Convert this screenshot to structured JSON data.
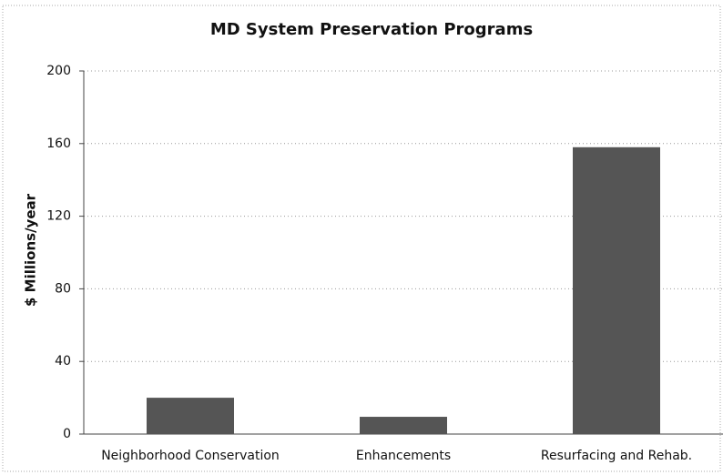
{
  "chart_data": {
    "type": "bar",
    "title": "MD System Preservation Programs",
    "y_label": "$ Millions/year",
    "categories": [
      "Neighborhood Conservation",
      "Enhancements",
      "Resurfacing and Rehab."
    ],
    "values": [
      20,
      9.5,
      158
    ],
    "color": "#555555",
    "ylim": [
      0,
      200
    ],
    "yticks": [
      0,
      40,
      80,
      120,
      160,
      200
    ],
    "grid": true
  }
}
